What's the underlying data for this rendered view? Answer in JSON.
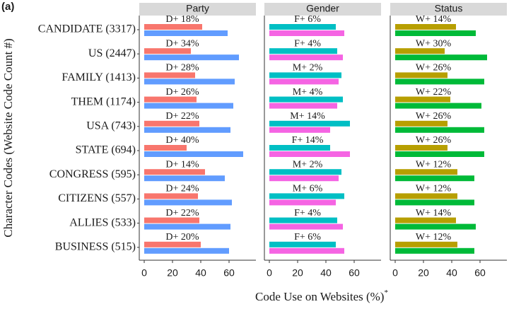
{
  "panel_label": "(a)",
  "y_label": "Character Codes (Website Code Count #)",
  "x_label": "Code Use on Websites (%)",
  "x_label_sup": "*",
  "chart_data": [
    {
      "type": "bar",
      "title": "Party",
      "categories": [
        "CANDIDATE (3317)",
        "US (2447)",
        "FAMILY (1413)",
        "THEM (1174)",
        "USA (743)",
        "STATE (694)",
        "CONGRESS (595)",
        "CITIZENS (557)",
        "ALLIES (533)",
        "BUSINESS (515)"
      ],
      "series": [
        {
          "color": "#f8766d",
          "values": [
            41,
            33,
            36,
            37,
            39,
            30,
            43,
            38,
            39,
            40
          ]
        },
        {
          "color": "#619cff",
          "values": [
            59,
            67,
            64,
            63,
            61,
            70,
            57,
            62,
            61,
            60
          ]
        }
      ],
      "labels": [
        "D+ 18%",
        "D+ 34%",
        "D+ 28%",
        "D+ 26%",
        "D+ 22%",
        "D+ 40%",
        "D+ 14%",
        "D+ 24%",
        "D+ 22%",
        "D+ 20%"
      ],
      "xlim": [
        -3.5,
        79
      ],
      "xticks": [
        0,
        20,
        40,
        60
      ]
    },
    {
      "type": "bar",
      "title": "Gender",
      "series": [
        {
          "color": "#00bfc4",
          "values": [
            47,
            48,
            51,
            52,
            57,
            43,
            51,
            53,
            48,
            47
          ]
        },
        {
          "color": "#f564e3",
          "values": [
            53,
            52,
            49,
            48,
            43,
            57,
            49,
            47,
            52,
            53
          ]
        }
      ],
      "labels": [
        "F+ 6%",
        "F+ 4%",
        "M+ 2%",
        "M+ 4%",
        "M+ 14%",
        "F+ 14%",
        "M+ 2%",
        "M+ 6%",
        "F+ 4%",
        "F+ 6%"
      ],
      "xlim": [
        -3.5,
        79
      ],
      "xticks": [
        0,
        20,
        40,
        60
      ]
    },
    {
      "type": "bar",
      "title": "Status",
      "series": [
        {
          "color": "#b79f00",
          "values": [
            43,
            35,
            37,
            39,
            37,
            37,
            44,
            44,
            43,
            44
          ]
        },
        {
          "color": "#00ba38",
          "values": [
            57,
            65,
            63,
            61,
            63,
            63,
            56,
            56,
            57,
            56
          ]
        }
      ],
      "labels": [
        "W+ 14%",
        "W+ 30%",
        "W+ 26%",
        "W+ 22%",
        "W+ 26%",
        "W+ 26%",
        "W+ 12%",
        "W+ 12%",
        "W+ 14%",
        "W+ 12%"
      ],
      "xlim": [
        -3.5,
        79
      ],
      "xticks": [
        0,
        20,
        40,
        60
      ]
    }
  ]
}
